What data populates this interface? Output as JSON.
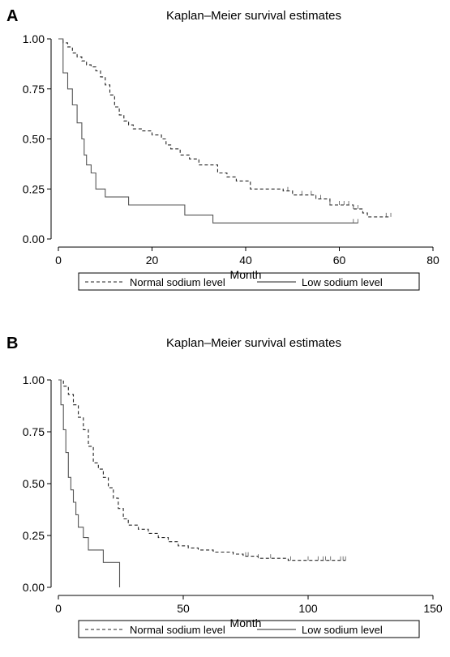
{
  "chart_data": [
    {
      "panel_label": "A",
      "type": "line",
      "title": "Kaplan–Meier survival estimates",
      "xlabel": "Month",
      "ylabel": "",
      "xlim": [
        0,
        80
      ],
      "ylim": [
        0,
        1
      ],
      "x_ticks": [
        0,
        20,
        40,
        60,
        80
      ],
      "y_ticks": [
        0,
        0.25,
        0.5,
        0.75,
        1
      ],
      "y_tick_labels": [
        "0.00",
        "0.25",
        "0.50",
        "0.75",
        "1.00"
      ],
      "grid": false,
      "legend_position": "bottom",
      "series": [
        {
          "name": "Normal sodium level",
          "style": "dashed",
          "steps": [
            [
              0,
              1.0
            ],
            [
              1,
              0.98
            ],
            [
              2,
              0.96
            ],
            [
              3,
              0.93
            ],
            [
              4,
              0.91
            ],
            [
              5,
              0.89
            ],
            [
              6,
              0.87
            ],
            [
              7,
              0.86
            ],
            [
              8,
              0.84
            ],
            [
              9,
              0.81
            ],
            [
              10,
              0.77
            ],
            [
              11,
              0.72
            ],
            [
              12,
              0.66
            ],
            [
              13,
              0.62
            ],
            [
              14,
              0.59
            ],
            [
              15,
              0.57
            ],
            [
              16,
              0.55
            ],
            [
              18,
              0.54
            ],
            [
              20,
              0.52
            ],
            [
              22,
              0.5
            ],
            [
              23,
              0.47
            ],
            [
              24,
              0.45
            ],
            [
              26,
              0.42
            ],
            [
              28,
              0.4
            ],
            [
              30,
              0.37
            ],
            [
              34,
              0.33
            ],
            [
              36,
              0.31
            ],
            [
              38,
              0.29
            ],
            [
              41,
              0.25
            ],
            [
              48,
              0.24
            ],
            [
              50,
              0.22
            ],
            [
              55,
              0.2
            ],
            [
              58,
              0.17
            ],
            [
              63,
              0.15
            ],
            [
              65,
              0.13
            ],
            [
              66,
              0.11
            ],
            [
              71,
              0.11
            ]
          ],
          "censored": [
            49,
            52,
            54,
            55,
            56,
            58,
            60,
            61,
            62,
            63,
            64,
            70,
            71
          ]
        },
        {
          "name": "Low sodium level",
          "style": "solid",
          "steps": [
            [
              0,
              1.0
            ],
            [
              1,
              0.83
            ],
            [
              2,
              0.75
            ],
            [
              3,
              0.67
            ],
            [
              4,
              0.58
            ],
            [
              5,
              0.5
            ],
            [
              5.5,
              0.42
            ],
            [
              6,
              0.37
            ],
            [
              7,
              0.33
            ],
            [
              8,
              0.25
            ],
            [
              10,
              0.21
            ],
            [
              15,
              0.17
            ],
            [
              27,
              0.12
            ],
            [
              33,
              0.08
            ],
            [
              64,
              0.08
            ]
          ],
          "censored": [
            63,
            64
          ]
        }
      ]
    },
    {
      "panel_label": "B",
      "type": "line",
      "title": "Kaplan–Meier survival estimates",
      "xlabel": "Month",
      "ylabel": "",
      "xlim": [
        0,
        150
      ],
      "ylim": [
        0,
        1
      ],
      "x_ticks": [
        0,
        50,
        100,
        150
      ],
      "y_ticks": [
        0,
        0.25,
        0.5,
        0.75,
        1
      ],
      "y_tick_labels": [
        "0.00",
        "0.25",
        "0.50",
        "0.75",
        "1.00"
      ],
      "grid": false,
      "legend_position": "bottom",
      "series": [
        {
          "name": "Normal sodium level",
          "style": "dashed",
          "steps": [
            [
              0,
              1.0
            ],
            [
              2,
              0.97
            ],
            [
              4,
              0.93
            ],
            [
              6,
              0.88
            ],
            [
              8,
              0.82
            ],
            [
              10,
              0.76
            ],
            [
              12,
              0.68
            ],
            [
              14,
              0.6
            ],
            [
              16,
              0.57
            ],
            [
              18,
              0.53
            ],
            [
              20,
              0.48
            ],
            [
              22,
              0.43
            ],
            [
              24,
              0.38
            ],
            [
              26,
              0.33
            ],
            [
              28,
              0.3
            ],
            [
              32,
              0.28
            ],
            [
              36,
              0.26
            ],
            [
              40,
              0.24
            ],
            [
              44,
              0.22
            ],
            [
              48,
              0.2
            ],
            [
              52,
              0.19
            ],
            [
              56,
              0.18
            ],
            [
              62,
              0.17
            ],
            [
              70,
              0.16
            ],
            [
              74,
              0.15
            ],
            [
              80,
              0.14
            ],
            [
              92,
              0.13
            ],
            [
              115,
              0.13
            ]
          ],
          "censored": [
            75,
            76,
            80,
            85,
            93,
            100,
            104,
            106,
            107,
            109,
            113,
            114,
            115
          ]
        },
        {
          "name": "Low sodium level",
          "style": "solid",
          "steps": [
            [
              0,
              1.0
            ],
            [
              1,
              0.88
            ],
            [
              2,
              0.76
            ],
            [
              3,
              0.65
            ],
            [
              4,
              0.53
            ],
            [
              5,
              0.47
            ],
            [
              6,
              0.41
            ],
            [
              7,
              0.35
            ],
            [
              8,
              0.29
            ],
            [
              10,
              0.24
            ],
            [
              12,
              0.18
            ],
            [
              17,
              0.18
            ],
            [
              18,
              0.12
            ],
            [
              24,
              0.12
            ],
            [
              24.5,
              0.0
            ]
          ],
          "censored": []
        }
      ]
    }
  ]
}
